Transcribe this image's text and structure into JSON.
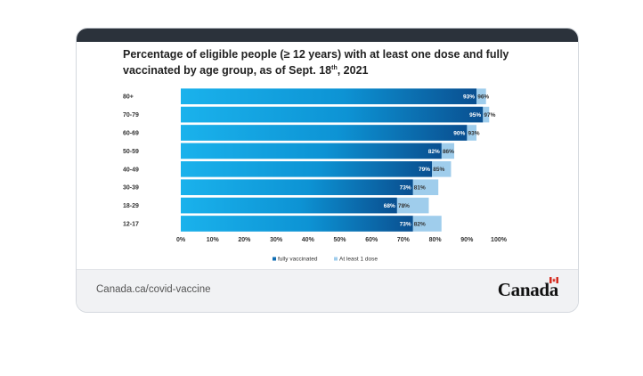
{
  "card": {
    "title_main": "Percentage of eligible people (≥ 12 years) with at least one dose and fully vaccinated by age group, as of Sept. 18",
    "title_sup": "th",
    "title_tail": ", 2021"
  },
  "footer": {
    "link": "Canada.ca/covid-vaccine",
    "wordmark": "Canada"
  },
  "chart_data": {
    "type": "bar",
    "orientation": "horizontal",
    "title": "Percentage of eligible people (≥ 12 years) with at least one dose and fully vaccinated by age group, as of Sept. 18th, 2021",
    "categories": [
      "80+",
      "70-79",
      "60-69",
      "50-59",
      "40-49",
      "30-39",
      "18-29",
      "12-17"
    ],
    "series": [
      {
        "name": "fully vaccinated",
        "values": [
          93,
          95,
          90,
          82,
          79,
          73,
          68,
          73
        ],
        "labels": [
          "93%",
          "95%",
          "90%",
          "82%",
          "79%",
          "73%",
          "68%",
          "73%"
        ]
      },
      {
        "name": "At least 1 dose",
        "values": [
          96,
          97,
          93,
          86,
          85,
          81,
          78,
          82
        ],
        "labels": [
          "96%",
          "97%",
          "93%",
          "86%",
          "85%",
          "81%",
          "78%",
          "82%"
        ]
      }
    ],
    "x_ticks": [
      "0%",
      "10%",
      "20%",
      "30%",
      "40%",
      "50%",
      "60%",
      "70%",
      "80%",
      "90%",
      "100%"
    ],
    "xlim": [
      0,
      100
    ],
    "legend_position": "bottom-center",
    "colors": {
      "fully_dark": "#0a4f90",
      "fully_light": "#1ab2ec",
      "dose": "#9fcdec",
      "legend_fully": "#0f6db3",
      "legend_dose": "#9fcdec",
      "label_on_dark": "#ffffff",
      "label_on_light": "#333333"
    }
  }
}
